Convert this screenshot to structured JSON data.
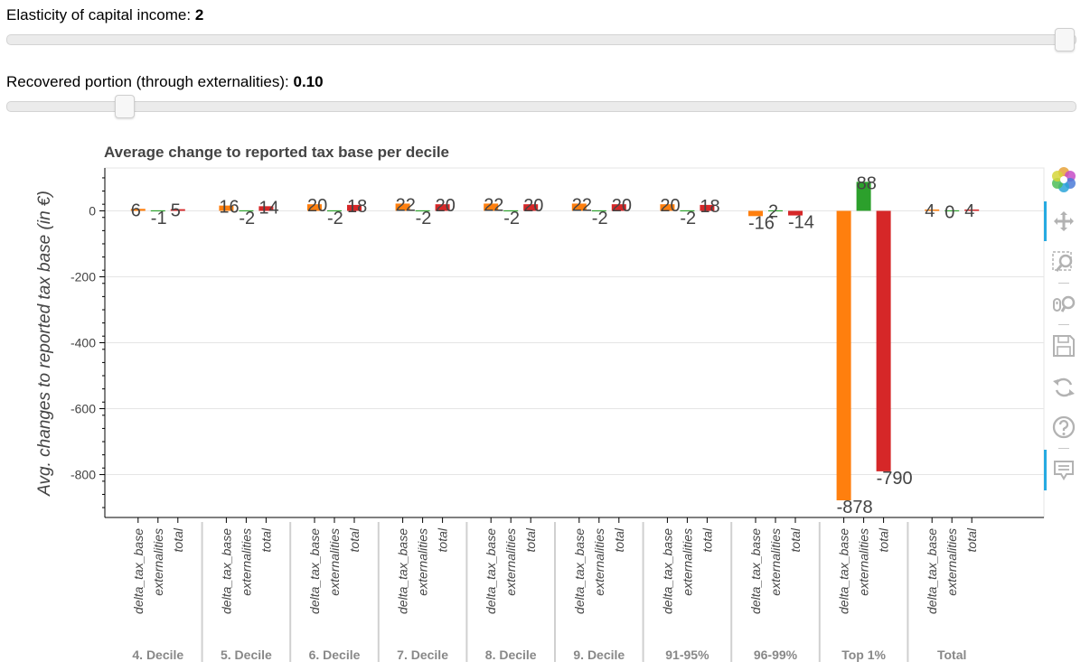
{
  "controls": {
    "elasticity": {
      "label": "Elasticity of capital income: ",
      "value": "2",
      "position_fraction": 1.0
    },
    "recovered": {
      "label": "Recovered portion (through externalities): ",
      "value": "0.10",
      "position_fraction": 0.1
    }
  },
  "toolbar": {
    "items": [
      {
        "name": "bokeh-logo-icon",
        "interactable": false
      },
      {
        "name": "pan-tool-icon",
        "interactable": true,
        "active": true
      },
      {
        "name": "box-zoom-tool-icon",
        "interactable": true
      },
      {
        "name": "wheel-zoom-tool-icon",
        "interactable": true
      },
      {
        "name": "save-tool-icon",
        "interactable": true
      },
      {
        "name": "reset-tool-icon",
        "interactable": true
      },
      {
        "name": "help-tool-icon",
        "interactable": true
      },
      {
        "name": "hover-tool-icon",
        "interactable": true,
        "active": true
      }
    ]
  },
  "chart_data": {
    "type": "bar",
    "title": "Average change to reported tax base per decile",
    "ylabel": "Avg. changes to reported tax base (in €)",
    "xlabel": "",
    "ylim": [
      -930,
      130
    ],
    "yticks": [
      0,
      -200,
      -400,
      -600,
      -800
    ],
    "grid": true,
    "groups": [
      "4. Decile",
      "5. Decile",
      "6. Decile",
      "7. Decile",
      "8. Decile",
      "9. Decile",
      "91-95%",
      "96-99%",
      "Top 1%",
      "Total"
    ],
    "subcategories": [
      "delta_tax_base",
      "externalities",
      "total"
    ],
    "colors": {
      "delta_tax_base": "#ff7f0e",
      "externalities": "#2ca02c",
      "total": "#d62728"
    },
    "series": [
      {
        "name": "delta_tax_base",
        "values": [
          6,
          16,
          20,
          22,
          22,
          22,
          20,
          -16,
          -878,
          4
        ]
      },
      {
        "name": "externalities",
        "values": [
          -1,
          -2,
          -2,
          -2,
          -2,
          -2,
          -2,
          2,
          88,
          0
        ]
      },
      {
        "name": "total",
        "values": [
          5,
          14,
          18,
          20,
          20,
          20,
          18,
          -14,
          -790,
          4
        ]
      }
    ],
    "data_labels": [
      [
        "6",
        "-1",
        "5"
      ],
      [
        "16",
        "-2",
        "14"
      ],
      [
        "20",
        "-2",
        "18"
      ],
      [
        "22",
        "-2",
        "20"
      ],
      [
        "22",
        "-2",
        "20"
      ],
      [
        "22",
        "-2",
        "20"
      ],
      [
        "20",
        "-2",
        "18"
      ],
      [
        "-16",
        "2",
        "-14"
      ],
      [
        "-878",
        "88",
        "-790"
      ],
      [
        "4",
        "0",
        "4"
      ]
    ]
  }
}
